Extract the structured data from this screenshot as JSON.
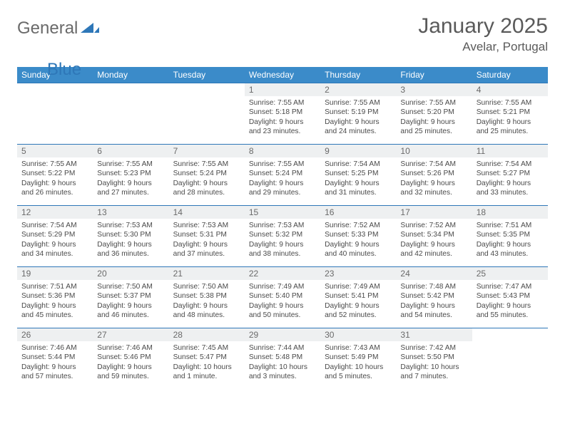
{
  "brand": {
    "word1": "General",
    "word2": "Blue"
  },
  "title": {
    "month": "January 2025",
    "location": "Avelar, Portugal"
  },
  "styling": {
    "header_bg": "#3b8bc9",
    "header_fg": "#ffffff",
    "row_border": "#2e77b8",
    "daynum_bg": "#eef0f1",
    "page_bg": "#ffffff",
    "text_color": "#4a4a4a",
    "title_color": "#5a5a5a",
    "logo_gray": "#6a6a6a",
    "logo_blue": "#2e77b8",
    "header_fontsize": 12,
    "daynum_fontsize": 12,
    "content_fontsize": 10.2,
    "title_fontsize": 30,
    "location_fontsize": 17
  },
  "daynames": [
    "Sunday",
    "Monday",
    "Tuesday",
    "Wednesday",
    "Thursday",
    "Friday",
    "Saturday"
  ],
  "weeks": [
    [
      {
        "n": "",
        "sr": "",
        "ss": "",
        "dl": ""
      },
      {
        "n": "",
        "sr": "",
        "ss": "",
        "dl": ""
      },
      {
        "n": "",
        "sr": "",
        "ss": "",
        "dl": ""
      },
      {
        "n": "1",
        "sr": "7:55 AM",
        "ss": "5:18 PM",
        "dl": "9 hours and 23 minutes."
      },
      {
        "n": "2",
        "sr": "7:55 AM",
        "ss": "5:19 PM",
        "dl": "9 hours and 24 minutes."
      },
      {
        "n": "3",
        "sr": "7:55 AM",
        "ss": "5:20 PM",
        "dl": "9 hours and 25 minutes."
      },
      {
        "n": "4",
        "sr": "7:55 AM",
        "ss": "5:21 PM",
        "dl": "9 hours and 25 minutes."
      }
    ],
    [
      {
        "n": "5",
        "sr": "7:55 AM",
        "ss": "5:22 PM",
        "dl": "9 hours and 26 minutes."
      },
      {
        "n": "6",
        "sr": "7:55 AM",
        "ss": "5:23 PM",
        "dl": "9 hours and 27 minutes."
      },
      {
        "n": "7",
        "sr": "7:55 AM",
        "ss": "5:24 PM",
        "dl": "9 hours and 28 minutes."
      },
      {
        "n": "8",
        "sr": "7:55 AM",
        "ss": "5:24 PM",
        "dl": "9 hours and 29 minutes."
      },
      {
        "n": "9",
        "sr": "7:54 AM",
        "ss": "5:25 PM",
        "dl": "9 hours and 31 minutes."
      },
      {
        "n": "10",
        "sr": "7:54 AM",
        "ss": "5:26 PM",
        "dl": "9 hours and 32 minutes."
      },
      {
        "n": "11",
        "sr": "7:54 AM",
        "ss": "5:27 PM",
        "dl": "9 hours and 33 minutes."
      }
    ],
    [
      {
        "n": "12",
        "sr": "7:54 AM",
        "ss": "5:29 PM",
        "dl": "9 hours and 34 minutes."
      },
      {
        "n": "13",
        "sr": "7:53 AM",
        "ss": "5:30 PM",
        "dl": "9 hours and 36 minutes."
      },
      {
        "n": "14",
        "sr": "7:53 AM",
        "ss": "5:31 PM",
        "dl": "9 hours and 37 minutes."
      },
      {
        "n": "15",
        "sr": "7:53 AM",
        "ss": "5:32 PM",
        "dl": "9 hours and 38 minutes."
      },
      {
        "n": "16",
        "sr": "7:52 AM",
        "ss": "5:33 PM",
        "dl": "9 hours and 40 minutes."
      },
      {
        "n": "17",
        "sr": "7:52 AM",
        "ss": "5:34 PM",
        "dl": "9 hours and 42 minutes."
      },
      {
        "n": "18",
        "sr": "7:51 AM",
        "ss": "5:35 PM",
        "dl": "9 hours and 43 minutes."
      }
    ],
    [
      {
        "n": "19",
        "sr": "7:51 AM",
        "ss": "5:36 PM",
        "dl": "9 hours and 45 minutes."
      },
      {
        "n": "20",
        "sr": "7:50 AM",
        "ss": "5:37 PM",
        "dl": "9 hours and 46 minutes."
      },
      {
        "n": "21",
        "sr": "7:50 AM",
        "ss": "5:38 PM",
        "dl": "9 hours and 48 minutes."
      },
      {
        "n": "22",
        "sr": "7:49 AM",
        "ss": "5:40 PM",
        "dl": "9 hours and 50 minutes."
      },
      {
        "n": "23",
        "sr": "7:49 AM",
        "ss": "5:41 PM",
        "dl": "9 hours and 52 minutes."
      },
      {
        "n": "24",
        "sr": "7:48 AM",
        "ss": "5:42 PM",
        "dl": "9 hours and 54 minutes."
      },
      {
        "n": "25",
        "sr": "7:47 AM",
        "ss": "5:43 PM",
        "dl": "9 hours and 55 minutes."
      }
    ],
    [
      {
        "n": "26",
        "sr": "7:46 AM",
        "ss": "5:44 PM",
        "dl": "9 hours and 57 minutes."
      },
      {
        "n": "27",
        "sr": "7:46 AM",
        "ss": "5:46 PM",
        "dl": "9 hours and 59 minutes."
      },
      {
        "n": "28",
        "sr": "7:45 AM",
        "ss": "5:47 PM",
        "dl": "10 hours and 1 minute."
      },
      {
        "n": "29",
        "sr": "7:44 AM",
        "ss": "5:48 PM",
        "dl": "10 hours and 3 minutes."
      },
      {
        "n": "30",
        "sr": "7:43 AM",
        "ss": "5:49 PM",
        "dl": "10 hours and 5 minutes."
      },
      {
        "n": "31",
        "sr": "7:42 AM",
        "ss": "5:50 PM",
        "dl": "10 hours and 7 minutes."
      },
      {
        "n": "",
        "sr": "",
        "ss": "",
        "dl": ""
      }
    ]
  ],
  "labels": {
    "sunrise": "Sunrise: ",
    "sunset": "Sunset: ",
    "daylight": "Daylight: "
  }
}
